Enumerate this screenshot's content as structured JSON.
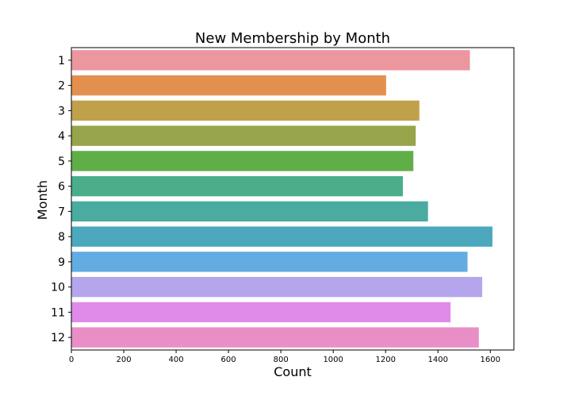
{
  "chart_data": {
    "type": "bar",
    "orientation": "horizontal",
    "title": "New Membership by Month",
    "xlabel": "Count",
    "ylabel": "Month",
    "xlim": [
      0,
      1690
    ],
    "xticks": [
      0,
      200,
      400,
      600,
      800,
      1000,
      1200,
      1400,
      1600
    ],
    "grid": false,
    "legend": "none",
    "categories": [
      "1",
      "2",
      "3",
      "4",
      "5",
      "6",
      "7",
      "8",
      "9",
      "10",
      "11",
      "12"
    ],
    "values": [
      1522,
      1202,
      1329,
      1315,
      1306,
      1266,
      1362,
      1608,
      1513,
      1569,
      1448,
      1556
    ],
    "colors": [
      "#ec96a0",
      "#e3904f",
      "#c0a14b",
      "#98a44a",
      "#5fae47",
      "#4aae8b",
      "#4aaba0",
      "#4ca8bc",
      "#63ace2",
      "#b5a5ed",
      "#e08ae9",
      "#e98ec6"
    ]
  }
}
